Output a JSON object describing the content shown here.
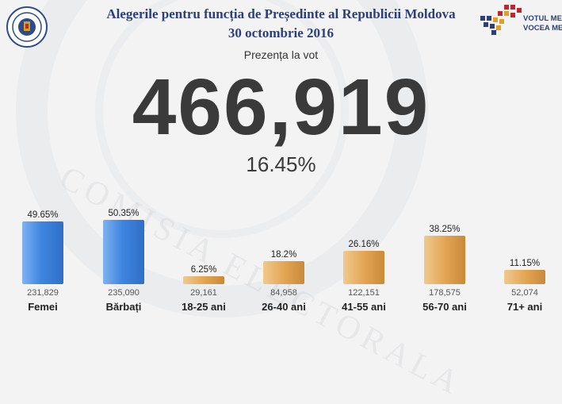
{
  "header": {
    "title": "Alegerile pentru funcția de Președinte al Republicii Moldova",
    "date": "30 octombrie 2016",
    "logo_left": "cec-seal-icon",
    "logo_right_text": [
      "VOTUL MEU",
      "VOCEA MEA"
    ]
  },
  "turnout": {
    "label": "Prezența la vot",
    "total": "466,919",
    "percent": "16.45%"
  },
  "colors": {
    "title": "#2c3f7a",
    "gender_bar": "#3f86e0",
    "age_bar": "#e3a655"
  },
  "chart_data": {
    "type": "bar",
    "categories": [
      "Femei",
      "Bărbați",
      "18-25 ani",
      "26-40 ani",
      "41-55 ani",
      "56-70 ani",
      "71+ ani"
    ],
    "values": [
      49.65,
      50.35,
      6.25,
      18.2,
      26.16,
      38.25,
      11.15
    ],
    "labels": [
      "49.65%",
      "50.35%",
      "6.25%",
      "18.2%",
      "26.16%",
      "38.25%",
      "11.15%"
    ],
    "counts": [
      "231,829",
      "235,090",
      "29,161",
      "84,958",
      "122,151",
      "178,575",
      "52,074"
    ],
    "groups": [
      "gender",
      "gender",
      "age",
      "age",
      "age",
      "age",
      "age"
    ]
  }
}
